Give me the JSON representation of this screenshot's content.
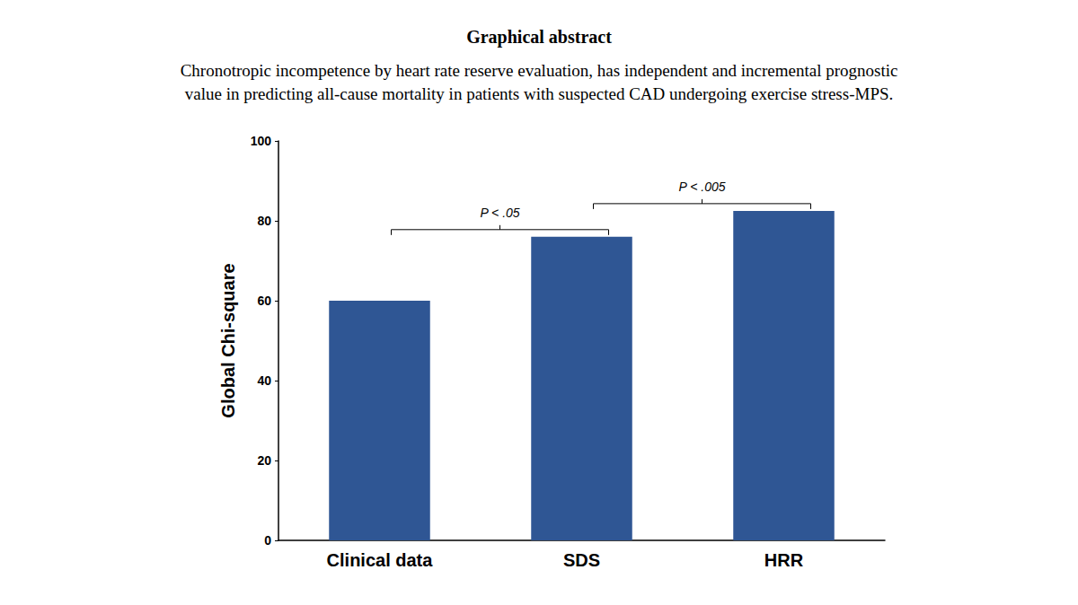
{
  "chart_data": {
    "type": "bar",
    "title": "Graphical abstract",
    "subtitle": "Chronotropic incompetence by heart rate reserve evaluation, has independent and incremental prognostic\nvalue in predicting all-cause mortality in patients with suspected CAD undergoing exercise stress-MPS.",
    "y_label": "Global Chi-square",
    "categories": [
      "Clinical data",
      "SDS",
      "HRR"
    ],
    "values": [
      60,
      76,
      82.5
    ],
    "color": "#2f5694",
    "ylim": [
      0,
      100
    ],
    "yticks": [
      0,
      20,
      40,
      60,
      80,
      100
    ],
    "grid": false,
    "annotations": [
      {
        "text": "P < .05",
        "between": [
          "Clinical data",
          "SDS"
        ]
      },
      {
        "text": "P < .005",
        "between": [
          "SDS",
          "HRR"
        ]
      }
    ]
  }
}
